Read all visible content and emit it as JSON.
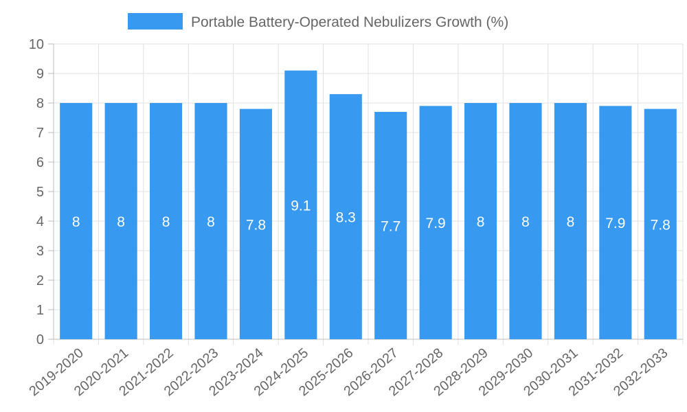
{
  "chart_data": {
    "type": "bar",
    "title": "",
    "xlabel": "",
    "ylabel": "",
    "ylim": [
      0,
      10
    ],
    "yticks": [
      0,
      1,
      2,
      3,
      4,
      5,
      6,
      7,
      8,
      9,
      10
    ],
    "grid": true,
    "legend_position": "top-center",
    "categories": [
      "2019-2020",
      "2020-2021",
      "2021-2022",
      "2022-2023",
      "2023-2024",
      "2024-2025",
      "2025-2026",
      "2026-2027",
      "2027-2028",
      "2028-2029",
      "2029-2030",
      "2030-2031",
      "2031-2032",
      "2032-2033"
    ],
    "series": [
      {
        "name": "Portable Battery-Operated Nebulizers Growth (%)",
        "color": "#3799f0",
        "values": [
          8,
          8,
          8,
          8,
          7.8,
          9.1,
          8.3,
          7.7,
          7.9,
          8,
          8,
          8,
          7.9,
          7.8
        ]
      }
    ]
  }
}
